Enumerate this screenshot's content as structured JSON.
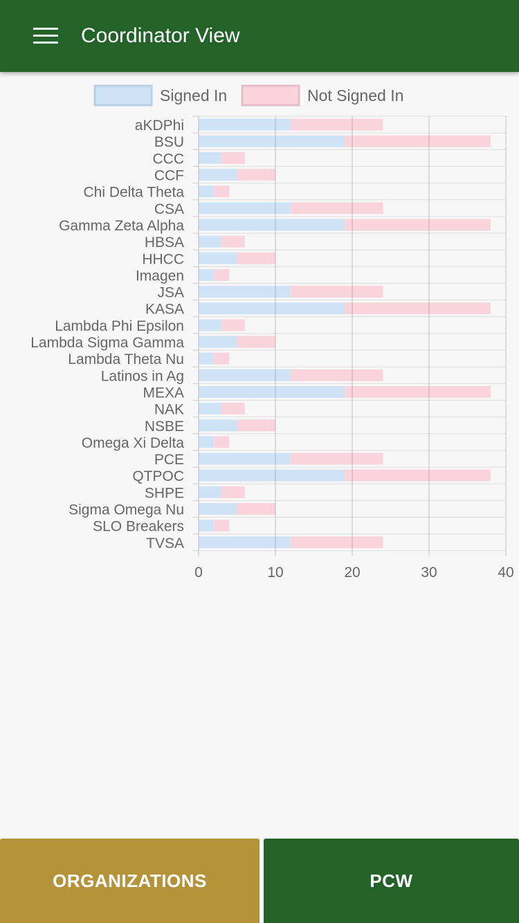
{
  "header": {
    "title": "Coordinator View",
    "menu_icon": "hamburger-menu-icon"
  },
  "colors": {
    "header_bg": "#23632a",
    "signed_in_fill": "#cfe3f6",
    "signed_in_border": "#b8cfe6",
    "not_signed_in_fill": "#f9d4dd",
    "not_signed_in_border": "#e6bcc6",
    "organizations_button": "#b5933b",
    "pcw_button": "#23632a"
  },
  "chart_data": {
    "type": "bar",
    "orientation": "horizontal",
    "stacked": true,
    "legend": [
      "Signed In",
      "Not Signed In"
    ],
    "legend_position": "top",
    "grid": true,
    "xlim": [
      0,
      40
    ],
    "x_ticks": [
      0,
      10,
      20,
      30,
      40
    ],
    "categories": [
      "aKDPhi",
      "BSU",
      "CCC",
      "CCF",
      "Chi Delta Theta",
      "CSA",
      "Gamma Zeta Alpha",
      "HBSA",
      "HHCC",
      "Imagen",
      "JSA",
      "KASA",
      "Lambda Phi Epsilon",
      "Lambda Sigma Gamma",
      "Lambda Theta Nu",
      "Latinos in Ag",
      "MEXA",
      "NAK",
      "NSBE",
      "Omega Xi Delta",
      "PCE",
      "QTPOC",
      "SHPE",
      "Sigma Omega Nu",
      "SLO Breakers",
      "TVSA"
    ],
    "series": [
      {
        "name": "Signed In",
        "values": [
          12,
          19,
          3,
          5,
          2,
          12,
          19,
          3,
          5,
          2,
          12,
          19,
          3,
          5,
          2,
          12,
          19,
          3,
          5,
          2,
          12,
          19,
          3,
          5,
          2,
          12
        ]
      },
      {
        "name": "Not Signed In",
        "values": [
          12,
          19,
          3,
          5,
          2,
          12,
          19,
          3,
          5,
          2,
          12,
          19,
          3,
          5,
          2,
          12,
          19,
          3,
          5,
          2,
          12,
          19,
          3,
          5,
          2,
          12
        ]
      }
    ]
  },
  "footer": {
    "organizations_label": "ORGANIZATIONS",
    "pcw_label": "PCW"
  }
}
